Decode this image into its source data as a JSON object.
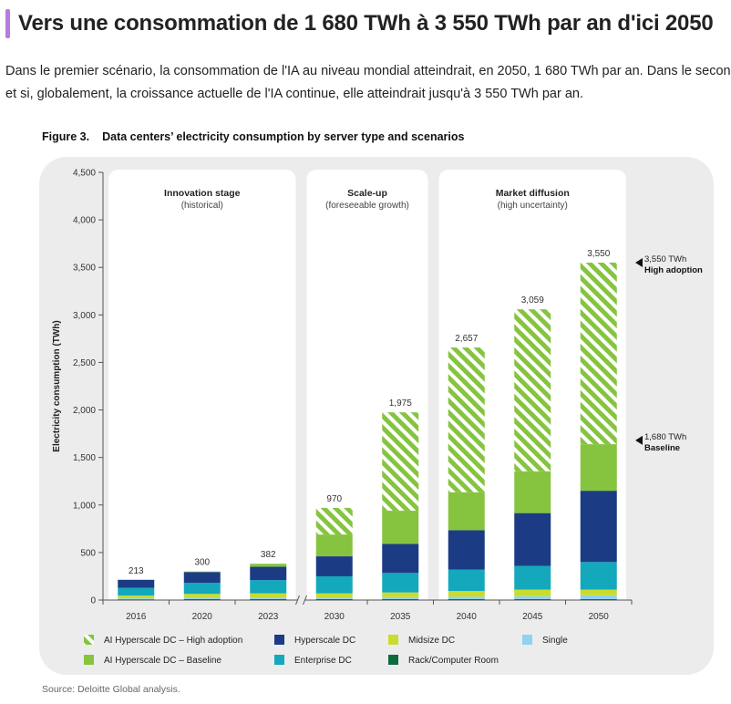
{
  "heading": {
    "title": "Vers une consommation de 1 680 TWh à 3 550 TWh par an d'ici 2050"
  },
  "paragraph": {
    "line1": "Dans le premier scénario, la consommation de l'IA au niveau mondial atteindrait, en 2050, 1 680 TWh par an. Dans le second",
    "line2": "et si, globalement, la croissance actuelle de l'IA continue, elle atteindrait jusqu'à 3 550 TWh par an."
  },
  "figure": {
    "number": "Figure 3.",
    "title": "Data centers’ electricity consumption by server type and scenarios",
    "source": "Source: Deloitte Global analysis."
  },
  "colors": {
    "ai_high": "#86c440",
    "ai_baseline": "#86c440",
    "hyperscale": "#1b3c85",
    "enterprise": "#14a8bd",
    "midsize": "#c9dc2e",
    "single": "#8fd3f0",
    "rack": "#0c6b3c",
    "panel": "#ececec",
    "axis_text": "#333333"
  },
  "chart_data": {
    "type": "bar",
    "stacked": true,
    "ylabel": "Electricity consumption (TWh)",
    "ylim": [
      0,
      4500
    ],
    "yticks": [
      0,
      500,
      1000,
      1500,
      2000,
      2500,
      3000,
      3500,
      4000,
      4500
    ],
    "ytick_labels": [
      "0",
      "500",
      "1,000",
      "1,500",
      "2,000",
      "2,500",
      "3,000",
      "3,500",
      "4,000",
      "4,500"
    ],
    "categories": [
      "2016",
      "2020",
      "2023",
      "2030",
      "2035",
      "2040",
      "2045",
      "2050"
    ],
    "totals": [
      213,
      300,
      382,
      970,
      1975,
      2657,
      3059,
      3550
    ],
    "total_labels": [
      "213",
      "300",
      "382",
      "970",
      "1,975",
      "2,657",
      "3,059",
      "3,550"
    ],
    "series": [
      {
        "name": "Rack/Computer Room",
        "key": "rack",
        "values": [
          8,
          10,
          10,
          10,
          10,
          10,
          10,
          10
        ]
      },
      {
        "name": "Single",
        "key": "single",
        "values": [
          10,
          15,
          15,
          15,
          20,
          25,
          30,
          40
        ]
      },
      {
        "name": "Midsize DC",
        "key": "midsize",
        "values": [
          30,
          40,
          45,
          45,
          50,
          60,
          70,
          60
        ]
      },
      {
        "name": "Enterprise DC",
        "key": "enterprise",
        "values": [
          80,
          115,
          140,
          180,
          205,
          225,
          250,
          290
        ]
      },
      {
        "name": "Hyperscale DC",
        "key": "hyperscale",
        "values": [
          85,
          115,
          140,
          210,
          305,
          415,
          555,
          750
        ]
      },
      {
        "name": "AI Hyperscale DC – Baseline",
        "key": "ai_baseline",
        "values": [
          0,
          5,
          32,
          230,
          350,
          400,
          440,
          490
        ]
      },
      {
        "name": "AI Hyperscale DC – High adoption",
        "key": "ai_high",
        "hatched": true,
        "values": [
          0,
          0,
          0,
          280,
          1035,
          1522,
          1704,
          1910
        ]
      }
    ],
    "stages": [
      {
        "title": "Innovation stage",
        "subtitle": "(historical)",
        "from": "2016",
        "to": "2023"
      },
      {
        "title": "Scale-up",
        "subtitle": "(foreseeable growth)",
        "from": "2030",
        "to": "2035"
      },
      {
        "title": "Market diffusion",
        "subtitle": "(high uncertainty)",
        "from": "2040",
        "to": "2050"
      }
    ],
    "annotations": [
      {
        "value": 3550,
        "label1": "3,550 TWh",
        "label2": "High adoption"
      },
      {
        "value": 1680,
        "label1": "1,680 TWh",
        "label2": "Baseline"
      }
    ],
    "axis_break_after": "2023",
    "legend": {
      "position": "bottom",
      "rows": [
        [
          "ai_high",
          "hyperscale",
          "midsize",
          "single"
        ],
        [
          "ai_baseline",
          "enterprise",
          "rack"
        ]
      ]
    }
  }
}
